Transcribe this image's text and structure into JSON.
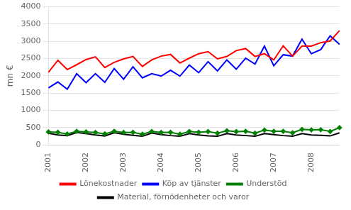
{
  "chart_data": {
    "type": "line",
    "ylabel": "mn €",
    "categories": [
      "2001",
      null,
      null,
      null,
      "2002",
      null,
      null,
      null,
      "2003",
      null,
      null,
      null,
      "2004",
      null,
      null,
      null,
      "2005",
      null,
      null,
      null,
      "2006",
      null,
      null,
      null,
      "2007",
      null,
      null,
      null,
      "2008",
      null,
      null,
      null
    ],
    "series": [
      {
        "name": "Lönekostnader",
        "color": "#FF0000",
        "values": [
          2100,
          2450,
          2180,
          2320,
          2470,
          2550,
          2240,
          2390,
          2490,
          2560,
          2270,
          2460,
          2570,
          2620,
          2370,
          2510,
          2640,
          2700,
          2490,
          2560,
          2730,
          2790,
          2560,
          2640,
          2460,
          2870,
          2570,
          2860,
          2860,
          2960,
          3010,
          3310
        ]
      },
      {
        "name": "Köp av tjänster",
        "color": "#0000FF",
        "values": [
          1650,
          1820,
          1610,
          2060,
          1800,
          2060,
          1810,
          2210,
          1900,
          2260,
          1940,
          2060,
          1990,
          2160,
          1990,
          2310,
          2090,
          2410,
          2140,
          2460,
          2190,
          2510,
          2340,
          2860,
          2290,
          2610,
          2570,
          3060,
          2640,
          2760,
          3160,
          2910
        ]
      },
      {
        "name": "Understöd",
        "color": "#008000",
        "marker": "diamond",
        "values": [
          370,
          360,
          310,
          390,
          370,
          355,
          315,
          390,
          355,
          360,
          305,
          385,
          355,
          360,
          305,
          385,
          360,
          380,
          335,
          405,
          380,
          390,
          335,
          425,
          390,
          390,
          345,
          445,
          430,
          435,
          385,
          495
        ]
      },
      {
        "name": "Material, förnödenheter och varor",
        "color": "#000000",
        "values": [
          335,
          285,
          265,
          355,
          325,
          285,
          255,
          350,
          305,
          275,
          245,
          340,
          295,
          265,
          245,
          325,
          285,
          255,
          245,
          325,
          285,
          265,
          245,
          325,
          295,
          265,
          245,
          325,
          285,
          275,
          255,
          345
        ]
      }
    ],
    "ylim": [
      0,
      4000
    ],
    "yticks": [
      0,
      500,
      1000,
      1500,
      2000,
      2500,
      3000,
      3500,
      4000
    ],
    "grid": "y",
    "legend": "bottom"
  }
}
